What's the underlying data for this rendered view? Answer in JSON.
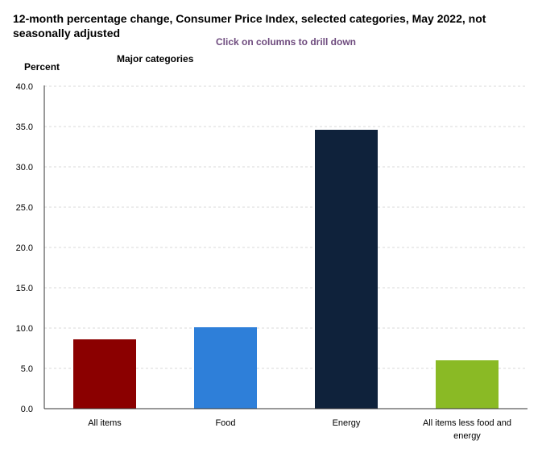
{
  "header": {
    "title": "12-month percentage change, Consumer Price Index, selected categories, May 2022, not seasonally adjusted",
    "drill_note": "Click on columns to drill down"
  },
  "chart_data": {
    "type": "bar",
    "subtitle": "Major categories",
    "ylabel": "Percent",
    "xlabel": "",
    "ylim": [
      0,
      40
    ],
    "yticks": [
      "0.0",
      "5.0",
      "10.0",
      "15.0",
      "20.0",
      "25.0",
      "30.0",
      "35.0",
      "40.0"
    ],
    "grid": true,
    "categories": [
      {
        "label_lines": [
          "All items"
        ],
        "value": 8.6,
        "color": "#8b0000"
      },
      {
        "label_lines": [
          "Food"
        ],
        "value": 10.1,
        "color": "#2e7fd9"
      },
      {
        "label_lines": [
          "Energy"
        ],
        "value": 34.6,
        "color": "#0f223b"
      },
      {
        "label_lines": [
          "All items less food and",
          "energy"
        ],
        "value": 6.0,
        "color": "#8aba25"
      }
    ]
  }
}
